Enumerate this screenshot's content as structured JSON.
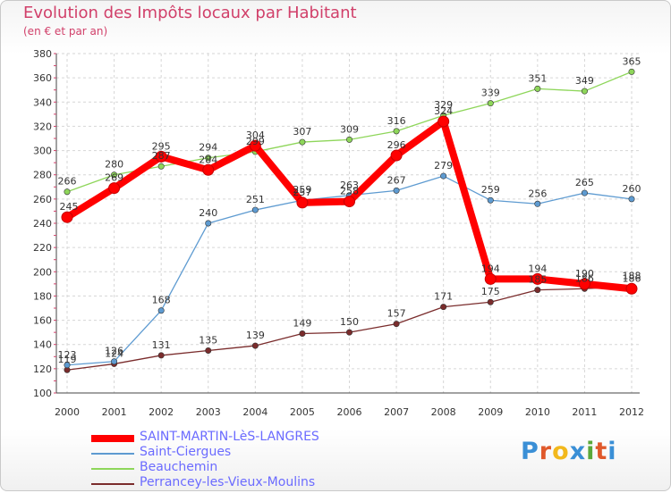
{
  "title": "Evolution des Impôts locaux par Habitant",
  "subtitle": "(en € et par an)",
  "brand": {
    "text": "Proxiti",
    "colors": [
      "#3a8fd6",
      "#e0592b",
      "#f2b81c",
      "#3a8fd6",
      "#5aa83a",
      "#e0592b",
      "#3a8fd6"
    ]
  },
  "chart_data": {
    "type": "line",
    "title": "Evolution des Impôts locaux par Habitant",
    "subtitle": "(en € et par an)",
    "x": [
      "2000",
      "2001",
      "2002",
      "2003",
      "2004",
      "2005",
      "2006",
      "2007",
      "2008",
      "2009",
      "2010",
      "2011",
      "2012"
    ],
    "ylim": [
      100,
      380
    ],
    "yticks": [
      100,
      120,
      140,
      160,
      180,
      200,
      220,
      240,
      260,
      280,
      300,
      320,
      340,
      360,
      380
    ],
    "grid": true,
    "legend_position": "bottom-left",
    "series": [
      {
        "name": "SAINT-MARTIN-LèS-LANGRES",
        "color": "#ff0000",
        "values": [
          245,
          269,
          295,
          284,
          304,
          257,
          258,
          296,
          324,
          194,
          194,
          190,
          186
        ]
      },
      {
        "name": "Saint-Ciergues",
        "color": "#5e9bd1",
        "values": [
          123,
          126,
          168,
          240,
          251,
          259,
          263,
          267,
          279,
          259,
          256,
          265,
          260
        ]
      },
      {
        "name": "Beauchemin",
        "color": "#8ed65a",
        "values": [
          266,
          280,
          287,
          294,
          299,
          307,
          309,
          316,
          329,
          339,
          351,
          349,
          365
        ]
      },
      {
        "name": "Perrancey-les-Vieux-Moulins",
        "color": "#7a2c2c",
        "values": [
          119,
          124,
          131,
          135,
          139,
          149,
          150,
          157,
          171,
          175,
          185,
          186,
          188
        ]
      }
    ]
  }
}
